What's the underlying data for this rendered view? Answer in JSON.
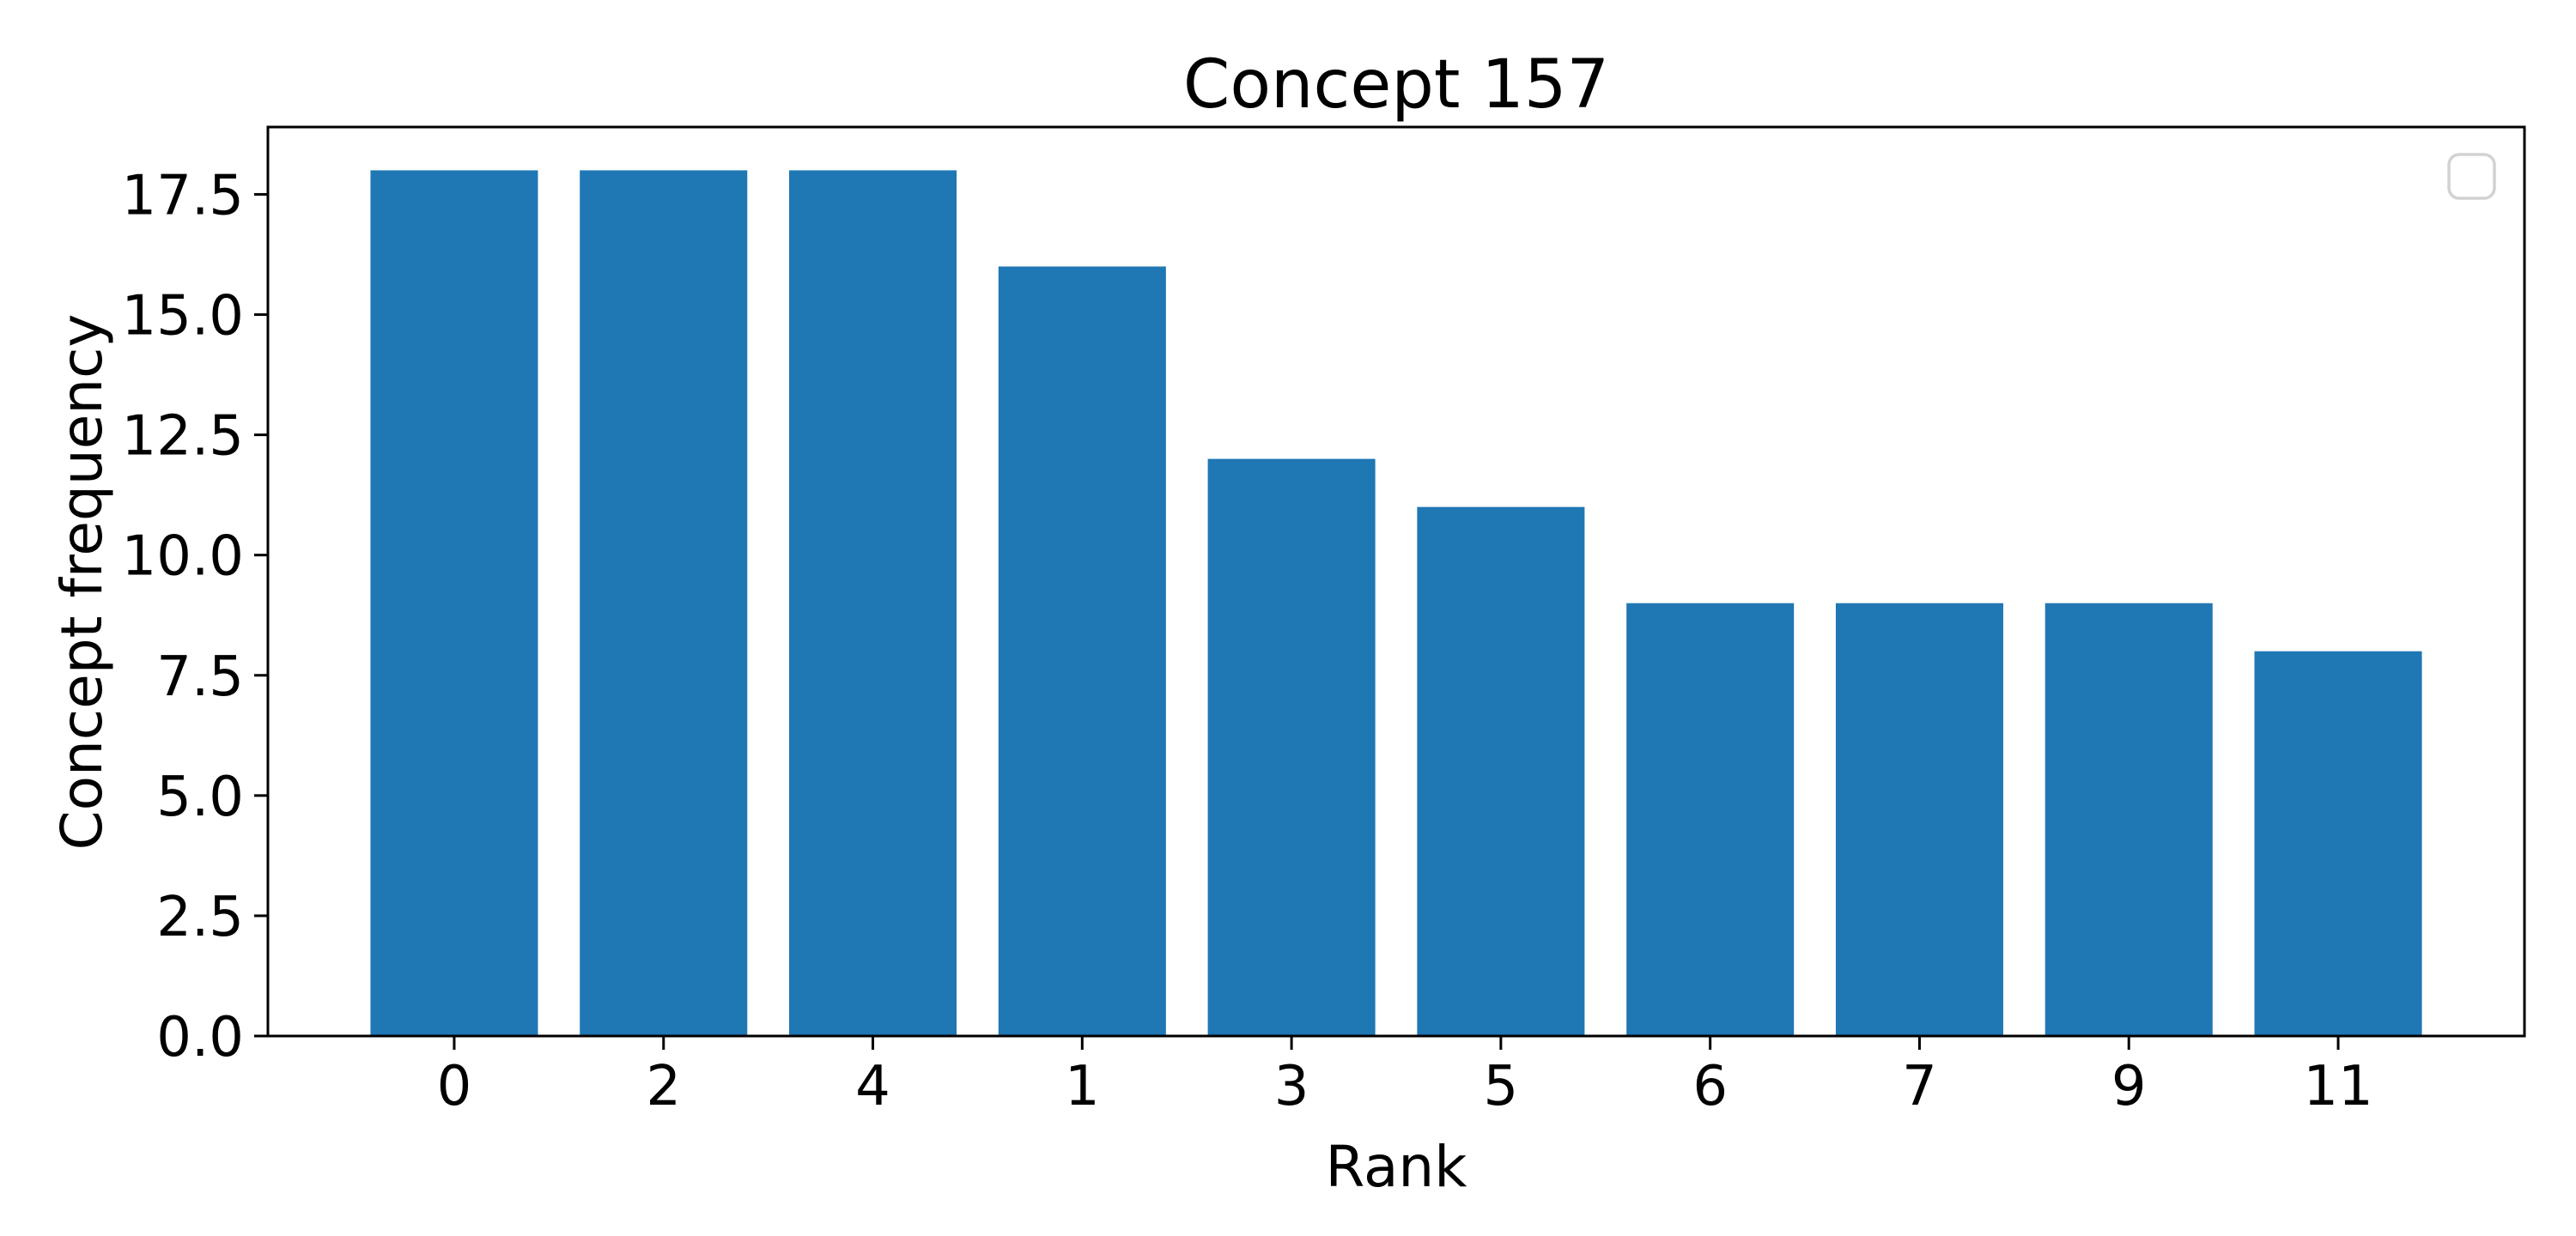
{
  "figure": {
    "background_color": "#ffffff"
  },
  "chart_data": {
    "type": "bar",
    "title": "Concept 157",
    "xlabel": "Rank",
    "ylabel": "Concept frequency",
    "categories": [
      "0",
      "2",
      "4",
      "1",
      "3",
      "5",
      "6",
      "7",
      "9",
      "11"
    ],
    "values": [
      18,
      18,
      18,
      16,
      12,
      11,
      9,
      9,
      9,
      8
    ],
    "ytick_values": [
      0,
      2.5,
      5,
      7.5,
      10,
      12.5,
      15,
      17.5
    ],
    "ytick_labels": [
      "0.0",
      "2.5",
      "5.0",
      "7.5",
      "10.0",
      "12.5",
      "15.0",
      "17.5"
    ],
    "ylim": [
      0,
      18.9
    ],
    "xlim": [
      -0.89,
      9.89
    ],
    "bar_width": 0.8,
    "bar_color": "#1f77b4",
    "axis_color": "#000000",
    "grid": false,
    "legend": {
      "position": "upper right",
      "entries": [],
      "empty_box": true,
      "border_color": "#d2d2d2",
      "fill_color": "#ffffff"
    }
  }
}
